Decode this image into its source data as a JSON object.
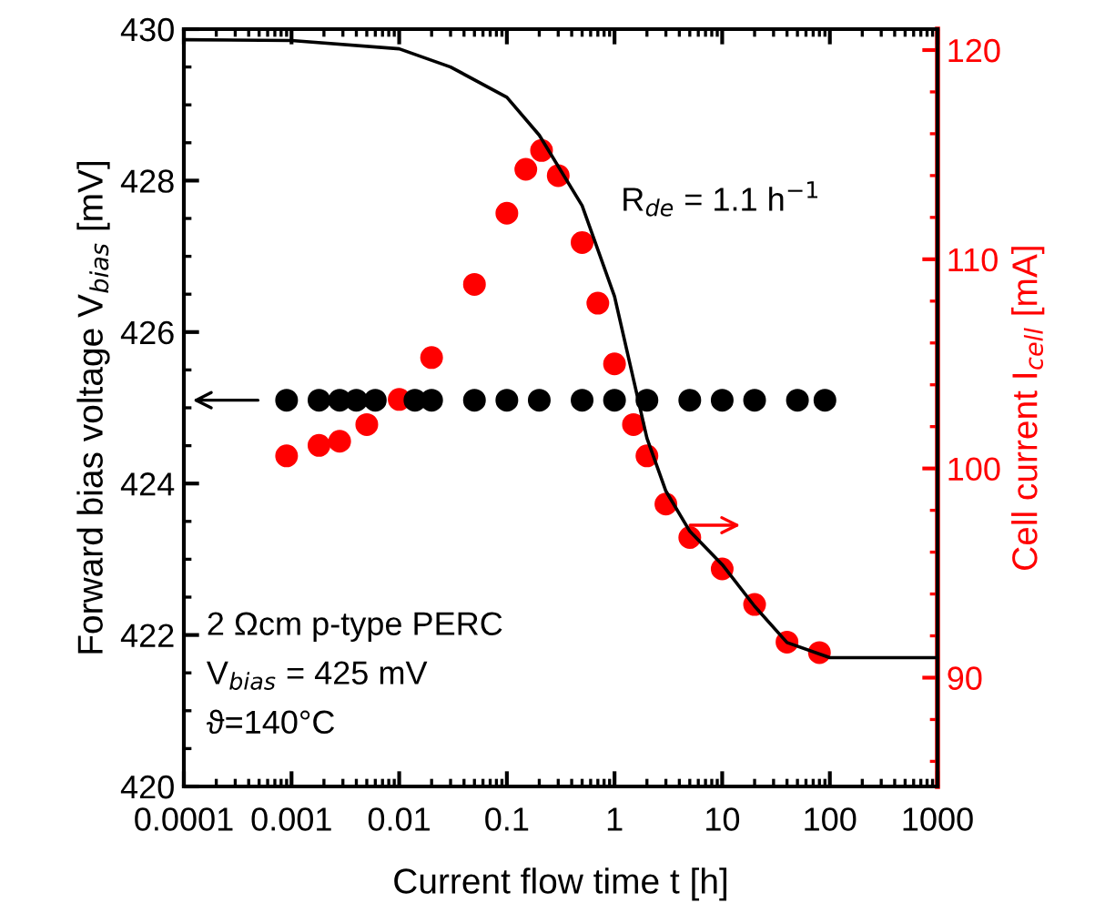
{
  "chart_data": {
    "type": "scatter",
    "xlabel": "Current flow time t [h]",
    "ylabel": "Forward bias voltage V$_{bias}$ [mV]",
    "y2label": "Cell current I$_{cell}$ [mA]",
    "log": "x",
    "xlim": [
      0.0001,
      1000
    ],
    "xticks": [
      0.0001,
      0.001,
      0.01,
      0.1,
      1,
      10,
      100,
      1000
    ],
    "ylim": [
      420,
      430
    ],
    "yticks": [
      420,
      422,
      424,
      426,
      428,
      430
    ],
    "y2lim": [
      84.8,
      121
    ],
    "y2ticks": [
      90,
      100,
      110,
      120
    ],
    "grid": false,
    "series": [
      {
        "type": "line",
        "color": "#000000",
        "marker": "none",
        "line_style": "solid",
        "x": [
          0.0001,
          0.001,
          0.01,
          0.03,
          0.1,
          0.2,
          0.5,
          1,
          2,
          3,
          5,
          10,
          20,
          40,
          100,
          1000
        ],
        "values": [
          429.86,
          429.85,
          429.74,
          429.5,
          429.1,
          428.6,
          427.67,
          426.47,
          424.6,
          423.9,
          423.37,
          422.93,
          422.38,
          421.9,
          421.7,
          421.7
        ]
      },
      {
        "color": "#000000",
        "marker": "circle",
        "x": [
          0.0009,
          0.0018,
          0.0028,
          0.004,
          0.006,
          0.014,
          0.02,
          0.05,
          0.1,
          0.2,
          0.5,
          1,
          2,
          5,
          10,
          20,
          50,
          90
        ],
        "values": [
          425.1,
          425.1,
          425.1,
          425.1,
          425.1,
          425.1,
          425.1,
          425.1,
          425.1,
          425.1,
          425.1,
          425.1,
          425.1,
          425.1,
          425.1,
          425.1,
          425.1,
          425.1
        ]
      },
      {
        "color": "#ff0000",
        "marker": "circle",
        "axis": "y2",
        "x": [
          0.0009,
          0.0018,
          0.0028,
          0.005,
          0.01,
          0.02,
          0.05,
          0.1,
          0.15,
          0.21,
          0.3,
          0.5,
          0.7,
          1,
          1.5,
          2,
          3,
          5,
          10,
          20,
          40,
          80
        ],
        "values": [
          100.6,
          101.1,
          101.3,
          102.1,
          103.3,
          105.3,
          108.8,
          112.2,
          114.3,
          115.2,
          114,
          110.8,
          107.9,
          105,
          102.1,
          100.6,
          98.3,
          96.7,
          95.2,
          93.5,
          91.7,
          91.2
        ]
      }
    ],
    "annotations": [
      "R$_{de}$ = 1.1 h$^{−1}$",
      "2 Ωcm p-type PERC",
      "V$_{bias}$ = 425 mV",
      "ϑ=140°C"
    ]
  }
}
